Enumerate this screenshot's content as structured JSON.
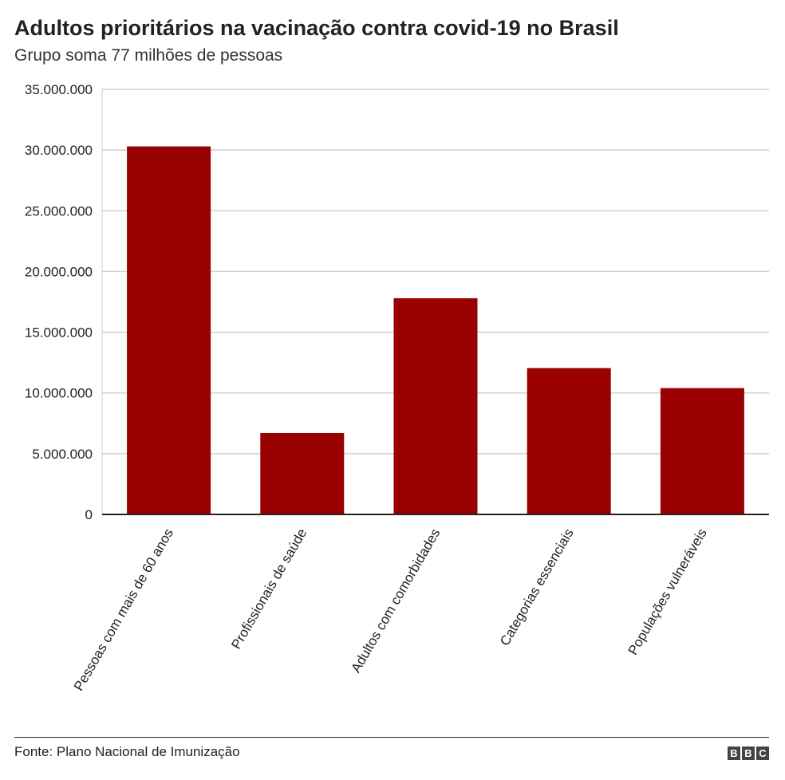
{
  "title": "Adultos prioritários na vacinação contra covid-19 no Brasil",
  "subtitle": "Grupo soma 77 milhões de pessoas",
  "source": "Fonte: Plano Nacional de Imunização",
  "logo": "BBC",
  "colors": {
    "bar": "#990000",
    "grid": "#d0d0d0",
    "axis": "#222222"
  },
  "chart_data": {
    "type": "bar",
    "categories": [
      "Pessoas com mais de 60 anos",
      "Profissionais de saúde",
      "Adultos com comorbidades",
      "Categorias essenciais",
      "Populações vulneráveis"
    ],
    "values": [
      30300000,
      6700000,
      17800000,
      12050000,
      10400000
    ],
    "ylim": [
      0,
      35000000
    ],
    "yticks": [
      0,
      5000000,
      10000000,
      15000000,
      20000000,
      25000000,
      30000000,
      35000000
    ],
    "ytick_labels": [
      "0",
      "5.000.000",
      "10.000.000",
      "15.000.000",
      "20.000.000",
      "25.000.000",
      "30.000.000",
      "35.000.000"
    ],
    "grid": true,
    "xlabel": "",
    "ylabel": ""
  }
}
